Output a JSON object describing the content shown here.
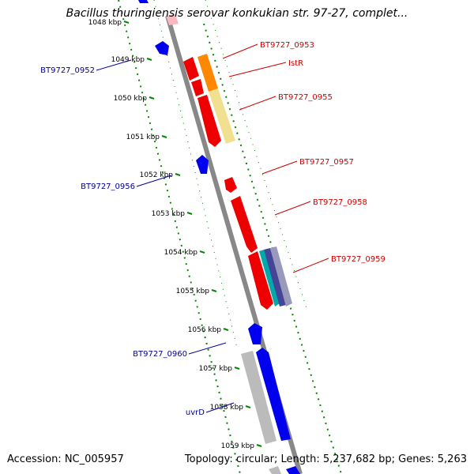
{
  "title": "Bacillus thuringiensis serovar konkukian str. 97-27, complet...",
  "footer": {
    "accession": "Accession: NC_005957",
    "summary": "Topology: circular; Length: 5,237,682 bp; Genes: 5,263"
  },
  "colors": {
    "forward_label": "#cc0000",
    "reverse_label": "#000099",
    "backbone": "#888888",
    "ticks": "#008800"
  },
  "kbp_ticks": [
    "1048 kbp",
    "1049 kbp",
    "1050 kbp",
    "1051 kbp",
    "1052 kbp",
    "1053 kbp",
    "1054 kbp",
    "1055 kbp",
    "1056 kbp",
    "1057 kbp",
    "1058 kbp",
    "1059 kbp"
  ],
  "gene_labels": [
    {
      "text": "BT9727_0953",
      "strand": "forward"
    },
    {
      "text": "IstR",
      "strand": "forward"
    },
    {
      "text": "BT9727_0955",
      "strand": "forward"
    },
    {
      "text": "BT9727_0957",
      "strand": "forward"
    },
    {
      "text": "BT9727_0958",
      "strand": "forward"
    },
    {
      "text": "BT9727_0959",
      "strand": "forward"
    },
    {
      "text": "BT9727_0952",
      "strand": "reverse"
    },
    {
      "text": "BT9727_0956",
      "strand": "reverse"
    },
    {
      "text": "BT9727_0960",
      "strand": "reverse"
    },
    {
      "text": "uvrD",
      "strand": "reverse"
    }
  ]
}
